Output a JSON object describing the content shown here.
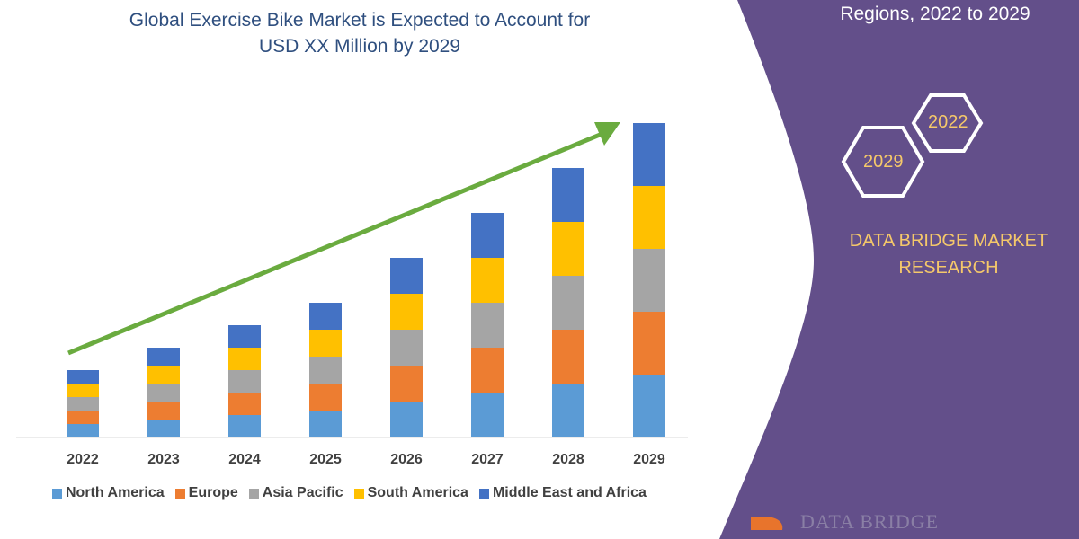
{
  "title_line1": "Global Exercise Bike Market is Expected to Account for",
  "title_line2": "USD XX Million by 2029",
  "right_title": "Regions, 2022 to 2029",
  "hexagons": [
    "2022",
    "2029"
  ],
  "brand_line1": "DATA BRIDGE MARKET",
  "brand_line2": "RESEARCH",
  "logo_text": "DATA BRIDGE",
  "colors": {
    "panel": "#634f8a",
    "arrow": "#6aab3f",
    "brand_text": "#f5c86a"
  },
  "chart_data": {
    "type": "bar",
    "stacked": true,
    "title": "Global Exercise Bike Market is Expected to Account for USD XX Million by 2029",
    "categories": [
      "2022",
      "2023",
      "2024",
      "2025",
      "2026",
      "2027",
      "2028",
      "2029"
    ],
    "series": [
      {
        "name": "North America",
        "color": "#5b9bd5",
        "values": [
          15,
          20,
          25,
          30,
          40,
          50,
          60,
          70
        ]
      },
      {
        "name": "Europe",
        "color": "#ed7d31",
        "values": [
          15,
          20,
          25,
          30,
          40,
          50,
          60,
          70
        ]
      },
      {
        "name": "Asia Pacific",
        "color": "#a5a5a5",
        "values": [
          15,
          20,
          25,
          30,
          40,
          50,
          60,
          70
        ]
      },
      {
        "name": "South America",
        "color": "#ffc000",
        "values": [
          15,
          20,
          25,
          30,
          40,
          50,
          60,
          70
        ]
      },
      {
        "name": "Middle East and Africa",
        "color": "#4472c4",
        "values": [
          15,
          20,
          25,
          30,
          40,
          50,
          60,
          70
        ]
      }
    ],
    "y_axis_shown": false,
    "grid": false,
    "legend_placement": "bottom",
    "annotation": "upward trend arrow"
  }
}
